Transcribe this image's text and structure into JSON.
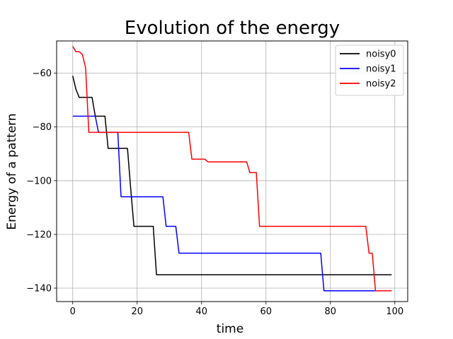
{
  "chart_data": {
    "type": "line",
    "title": "Evolution of the energy",
    "xlabel": "time",
    "ylabel": "Energy of a pattern",
    "xlim": [
      -5,
      104
    ],
    "ylim": [
      -145,
      -48
    ],
    "xticks": [
      0,
      20,
      40,
      60,
      80,
      100
    ],
    "yticks": [
      -60,
      -80,
      -100,
      -120,
      -140
    ],
    "xtick_labels": [
      "0",
      "20",
      "40",
      "60",
      "80",
      "100"
    ],
    "ytick_labels": [
      "−60",
      "−80",
      "−100",
      "−120",
      "−140"
    ],
    "grid": true,
    "legend_position": "top-right",
    "series": [
      {
        "name": "noisy0",
        "color": "#000000",
        "x": [
          0,
          1,
          2,
          3,
          4,
          5,
          6,
          7,
          8,
          9,
          10,
          11,
          12,
          13,
          14,
          15,
          16,
          17,
          18,
          19,
          20,
          24,
          25,
          26,
          99
        ],
        "y": [
          -61,
          -66,
          -69,
          -69,
          -69,
          -69,
          -69,
          -76,
          -76,
          -76,
          -76,
          -88,
          -88,
          -88,
          -88,
          -88,
          -88,
          -88,
          -103,
          -117,
          -117,
          -117,
          -117,
          -135,
          -135
        ]
      },
      {
        "name": "noisy1",
        "color": "#0000ff",
        "x": [
          0,
          6,
          7,
          8,
          14,
          15,
          28,
          29,
          30,
          32,
          33,
          34,
          77,
          78,
          99
        ],
        "y": [
          -76,
          -76,
          -76,
          -82,
          -82,
          -106,
          -106,
          -117,
          -117,
          -117,
          -127,
          -127,
          -127,
          -141,
          -141
        ]
      },
      {
        "name": "noisy2",
        "color": "#ff0000",
        "x": [
          0,
          1,
          2,
          3,
          4,
          5,
          35,
          36,
          37,
          40,
          41,
          42,
          53,
          54,
          55,
          56,
          57,
          58,
          90,
          91,
          92,
          93,
          94,
          99
        ],
        "y": [
          -50,
          -52,
          -52,
          -53,
          -58,
          -82,
          -82,
          -82,
          -92,
          -92,
          -92,
          -93,
          -93,
          -93,
          -97,
          -97,
          -97,
          -117,
          -117,
          -117,
          -127,
          -127,
          -141,
          -141
        ]
      }
    ]
  }
}
